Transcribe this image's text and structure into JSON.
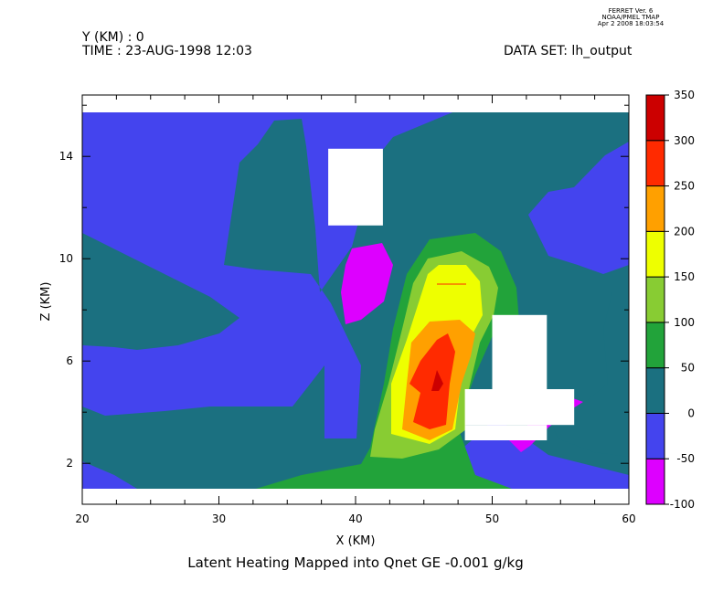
{
  "header": {
    "ferret_line1": "FERRET Ver. 6",
    "ferret_line2": "NOAA/PMEL TMAP",
    "ferret_line3": "Apr  2 2008 18:03:54",
    "y_line": "Y (KM) : 0",
    "time_line": "TIME : 23-AUG-1998 12:03",
    "dataset_line": "DATA SET: lh_output"
  },
  "chart_data": {
    "type": "heatmap",
    "title": "Latent Heating Mapped into Qnet GE -0.001 g/kg",
    "xlabel": "X (KM)",
    "ylabel": "Z (KM)",
    "xlim": [
      20,
      60
    ],
    "ylim": [
      0.4,
      16.4
    ],
    "x_ticks": [
      20,
      30,
      40,
      50,
      60
    ],
    "y_ticks": [
      2,
      6,
      10,
      14
    ],
    "colorbar": {
      "levels": [
        -100,
        -50,
        0,
        50,
        100,
        150,
        200,
        250,
        300,
        350
      ],
      "tick_labels": [
        "350",
        "300",
        "250",
        "200",
        "150",
        "100",
        "50",
        "0",
        "-50",
        "-100"
      ],
      "colors": [
        "#dd00ff",
        "#4444ee",
        "#1b7080",
        "#22a33a",
        "#88cc33",
        "#eeff00",
        "#ffa000",
        "#ff2a00",
        "#cc0000"
      ]
    },
    "masked_regions": [
      {
        "x": [
          38,
          42
        ],
        "z": [
          11.3,
          14.3
        ]
      },
      {
        "x": [
          50,
          54
        ],
        "z": [
          4.8,
          7.8
        ]
      },
      {
        "x": [
          48,
          56
        ],
        "z": [
          3.5,
          4.9
        ]
      },
      {
        "x": [
          48,
          54
        ],
        "z": [
          2.9,
          3.5
        ]
      }
    ],
    "data_domain": {
      "x": [
        20,
        60
      ],
      "z": [
        0.8,
        16.5
      ]
    }
  }
}
